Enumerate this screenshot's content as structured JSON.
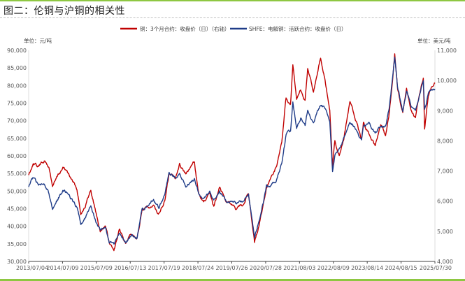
{
  "figure": {
    "title": "图二：伦铜与沪铜的相关性"
  },
  "chart_data": {
    "type": "line",
    "left_unit": "单位：元/吨",
    "right_unit": "单位：美元/吨",
    "left_axis": {
      "ticks": [
        30000,
        35000,
        40000,
        45000,
        50000,
        55000,
        60000,
        65000,
        70000,
        75000,
        80000,
        85000,
        90000
      ],
      "tick_labels": [
        "30,000",
        "35,000",
        "40,000",
        "45,000",
        "50,000",
        "55,000",
        "60,000",
        "65,000",
        "70,000",
        "75,000",
        "80,000",
        "85,000",
        "90,000"
      ],
      "ylim": [
        30000,
        90000
      ]
    },
    "right_axis": {
      "ticks": [
        4000,
        5000,
        6000,
        7000,
        8000,
        9000,
        10000,
        11000
      ],
      "tick_labels": [
        "4,000",
        "5,000",
        "6,000",
        "7,000",
        "8,000",
        "9,000",
        "10,000",
        "11,000"
      ],
      "ylim": [
        4000,
        11000
      ]
    },
    "x_tick_labels": [
      "2013/07/04",
      "2014/07/09",
      "2015/07/09",
      "2016/07/13",
      "2017/07/19",
      "2018/07/24",
      "2019/07/26",
      "2020/07/28",
      "2021/08/03",
      "2022/08/09",
      "2023/08/14",
      "2024/08/15",
      "2025/07/30"
    ],
    "xlim": [
      "2013/07/04",
      "2025/07/30"
    ],
    "series": [
      {
        "name": "铜：3个月合约：收盘价（日）（右轴）",
        "axis": "right",
        "color": "#c00000",
        "points": [
          [
            "2013/07/04",
            6870
          ],
          [
            "2013/08/20",
            7250
          ],
          [
            "2013/10/15",
            7150
          ],
          [
            "2013/12/20",
            7350
          ],
          [
            "2014/02/10",
            7100
          ],
          [
            "2014/03/20",
            6500
          ],
          [
            "2014/05/10",
            6800
          ],
          [
            "2014/07/10",
            7100
          ],
          [
            "2014/08/20",
            7000
          ],
          [
            "2014/10/15",
            6700
          ],
          [
            "2014/12/10",
            6400
          ],
          [
            "2015/01/20",
            5600
          ],
          [
            "2015/03/10",
            5850
          ],
          [
            "2015/05/10",
            6350
          ],
          [
            "2015/06/20",
            5800
          ],
          [
            "2015/08/20",
            5000
          ],
          [
            "2015/10/15",
            5200
          ],
          [
            "2015/11/25",
            4600
          ],
          [
            "2016/01/15",
            4350
          ],
          [
            "2016/03/15",
            5000
          ],
          [
            "2016/05/20",
            4600
          ],
          [
            "2016/07/20",
            4900
          ],
          [
            "2016/09/20",
            4800
          ],
          [
            "2016/11/15",
            5700
          ],
          [
            "2017/01/20",
            5800
          ],
          [
            "2017/03/20",
            5800
          ],
          [
            "2017/05/20",
            5600
          ],
          [
            "2017/07/20",
            6000
          ],
          [
            "2017/09/05",
            6900
          ],
          [
            "2017/11/10",
            6800
          ],
          [
            "2017/12/28",
            7250
          ],
          [
            "2018/03/10",
            6900
          ],
          [
            "2018/06/07",
            7300
          ],
          [
            "2018/07/24",
            6200
          ],
          [
            "2018/09/15",
            5950
          ],
          [
            "2018/11/20",
            6200
          ],
          [
            "2019/01/03",
            5800
          ],
          [
            "2019/03/05",
            6500
          ],
          [
            "2019/05/20",
            6000
          ],
          [
            "2019/07/26",
            5900
          ],
          [
            "2019/09/05",
            5700
          ],
          [
            "2019/11/20",
            5900
          ],
          [
            "2020/01/15",
            6250
          ],
          [
            "2020/03/20",
            4650
          ],
          [
            "2020/05/10",
            5200
          ],
          [
            "2020/06/25",
            5900
          ],
          [
            "2020/07/28",
            6400
          ],
          [
            "2020/09/15",
            6750
          ],
          [
            "2020/11/20",
            7200
          ],
          [
            "2021/01/10",
            8000
          ],
          [
            "2021/02/25",
            9400
          ],
          [
            "2021/04/15",
            9200
          ],
          [
            "2021/05/10",
            10500
          ],
          [
            "2021/06/20",
            9300
          ],
          [
            "2021/08/03",
            9700
          ],
          [
            "2021/09/20",
            9300
          ],
          [
            "2021/10/18",
            10400
          ],
          [
            "2021/12/20",
            9600
          ],
          [
            "2022/03/07",
            10700
          ],
          [
            "2022/04/25",
            10000
          ],
          [
            "2022/06/15",
            9000
          ],
          [
            "2022/07/15",
            7200
          ],
          [
            "2022/08/09",
            8000
          ],
          [
            "2022/09/25",
            7550
          ],
          [
            "2022/11/15",
            8100
          ],
          [
            "2023/01/20",
            9300
          ],
          [
            "2023/03/10",
            8800
          ],
          [
            "2023/05/25",
            8050
          ],
          [
            "2023/06/15",
            8600
          ],
          [
            "2023/08/14",
            8250
          ],
          [
            "2023/10/20",
            7850
          ],
          [
            "2023/12/20",
            8500
          ],
          [
            "2024/02/10",
            8150
          ],
          [
            "2024/03/20",
            8900
          ],
          [
            "2024/04/25",
            10000
          ],
          [
            "2024/05/20",
            10900
          ],
          [
            "2024/06/20",
            9700
          ],
          [
            "2024/08/15",
            8950
          ],
          [
            "2024/09/25",
            9750
          ],
          [
            "2024/11/15",
            9000
          ],
          [
            "2024/12/30",
            8750
          ],
          [
            "2025/01/20",
            9200
          ],
          [
            "2025/03/26",
            10100
          ],
          [
            "2025/04/09",
            8400
          ],
          [
            "2025/05/20",
            9500
          ],
          [
            "2025/06/20",
            9750
          ],
          [
            "2025/07/30",
            9900
          ]
        ]
      },
      {
        "name": "SHFE：电解铜：活跃合约：收盘价（日）",
        "axis": "left",
        "color": "#1f3c88",
        "points": [
          [
            "2013/07/04",
            51000
          ],
          [
            "2013/08/20",
            53500
          ],
          [
            "2013/10/15",
            52000
          ],
          [
            "2013/12/20",
            52500
          ],
          [
            "2014/02/10",
            49500
          ],
          [
            "2014/03/20",
            45000
          ],
          [
            "2014/05/10",
            47500
          ],
          [
            "2014/07/10",
            50000
          ],
          [
            "2014/08/20",
            49500
          ],
          [
            "2014/10/15",
            47500
          ],
          [
            "2014/12/10",
            45500
          ],
          [
            "2015/01/20",
            40500
          ],
          [
            "2015/03/10",
            42500
          ],
          [
            "2015/05/10",
            45500
          ],
          [
            "2015/06/20",
            42000
          ],
          [
            "2015/08/20",
            39000
          ],
          [
            "2015/10/15",
            39500
          ],
          [
            "2015/11/25",
            35500
          ],
          [
            "2016/01/15",
            34500
          ],
          [
            "2016/03/15",
            38000
          ],
          [
            "2016/05/20",
            35500
          ],
          [
            "2016/07/20",
            37500
          ],
          [
            "2016/09/20",
            36500
          ],
          [
            "2016/11/15",
            45000
          ],
          [
            "2017/01/20",
            46000
          ],
          [
            "2017/03/20",
            47500
          ],
          [
            "2017/05/20",
            45500
          ],
          [
            "2017/07/20",
            49000
          ],
          [
            "2017/09/05",
            55000
          ],
          [
            "2017/11/10",
            54000
          ],
          [
            "2017/12/28",
            55000
          ],
          [
            "2018/03/10",
            51000
          ],
          [
            "2018/06/07",
            53500
          ],
          [
            "2018/07/24",
            49500
          ],
          [
            "2018/09/15",
            48500
          ],
          [
            "2018/11/20",
            49500
          ],
          [
            "2019/01/03",
            47500
          ],
          [
            "2019/03/05",
            50000
          ],
          [
            "2019/05/20",
            47000
          ],
          [
            "2019/07/26",
            47000
          ],
          [
            "2019/09/05",
            46500
          ],
          [
            "2019/11/20",
            47000
          ],
          [
            "2020/01/15",
            49000
          ],
          [
            "2020/03/20",
            37000
          ],
          [
            "2020/05/10",
            42000
          ],
          [
            "2020/06/25",
            47000
          ],
          [
            "2020/07/28",
            51500
          ],
          [
            "2020/09/15",
            51500
          ],
          [
            "2020/11/20",
            53500
          ],
          [
            "2021/01/10",
            58000
          ],
          [
            "2021/02/25",
            66000
          ],
          [
            "2021/04/15",
            67000
          ],
          [
            "2021/05/10",
            75500
          ],
          [
            "2021/06/20",
            68000
          ],
          [
            "2021/08/03",
            71000
          ],
          [
            "2021/09/20",
            68500
          ],
          [
            "2021/10/18",
            73000
          ],
          [
            "2021/12/20",
            69500
          ],
          [
            "2022/03/07",
            74500
          ],
          [
            "2022/04/25",
            73500
          ],
          [
            "2022/06/15",
            69000
          ],
          [
            "2022/07/15",
            55500
          ],
          [
            "2022/08/09",
            60000
          ],
          [
            "2022/09/25",
            62000
          ],
          [
            "2022/11/15",
            65000
          ],
          [
            "2023/01/20",
            69500
          ],
          [
            "2023/03/10",
            68500
          ],
          [
            "2023/05/25",
            64500
          ],
          [
            "2023/06/15",
            68500
          ],
          [
            "2023/08/14",
            69500
          ],
          [
            "2023/10/20",
            66500
          ],
          [
            "2023/12/20",
            68500
          ],
          [
            "2024/02/10",
            68000
          ],
          [
            "2024/03/20",
            73000
          ],
          [
            "2024/04/25",
            82000
          ],
          [
            "2024/05/20",
            87500
          ],
          [
            "2024/06/20",
            80000
          ],
          [
            "2024/08/15",
            72500
          ],
          [
            "2024/09/25",
            78500
          ],
          [
            "2024/11/15",
            74500
          ],
          [
            "2024/12/30",
            73500
          ],
          [
            "2025/01/20",
            75000
          ],
          [
            "2025/03/26",
            81500
          ],
          [
            "2025/04/09",
            73000
          ],
          [
            "2025/05/20",
            77500
          ],
          [
            "2025/06/20",
            78500
          ],
          [
            "2025/07/30",
            79000
          ]
        ]
      }
    ],
    "grid": false,
    "legend": "top-center"
  }
}
